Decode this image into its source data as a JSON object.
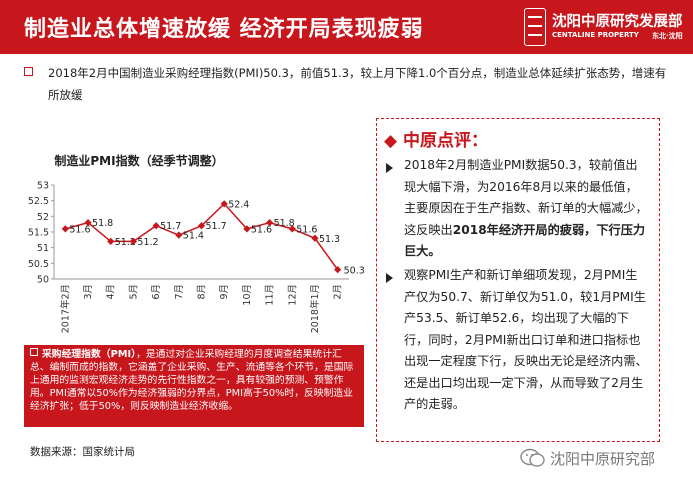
{
  "header": {
    "title": "制造业总体增速放缓 经济开局表现疲弱",
    "logo_cn": "沈阳中原研究发展部",
    "logo_en": "CENTALINE PROPERTY",
    "logo_city": "东北·沈阳"
  },
  "summary": "2018年2月中国制造业采购经理指数(PMI)50.3，前值51.3，较上月下降1.0个百分点，制造业总体延续扩张态势，增速有所放缓",
  "legend": {
    "term": "采购经理指数（PMI）",
    "body": "，是通过对企业采购经理的月度调查结果统计汇总、编制而成的指数，它涵盖了企业采购、生产、流通等各个环节，是国际上通用的监测宏观经济走势的先行性指数之一，具有较强的预测、预警作用。PMI通常以50%作为经济强弱的分界点，PMI高于50%时，反映制造业经济扩张；低于50%，则反映制造业经济收缩。"
  },
  "source": "数据来源：国家统计局",
  "comment": {
    "title": "中原点评：",
    "p1_a": "2018年2月制造业PMI数据50.3，较前值出现大幅下滑，为2016年8月以来的最低值，主要原因在于生产指数、新订单的大幅减少，这反映出",
    "p1_b": "2018年经济开局的疲弱，下行压力巨大。",
    "p2": "观察PMI生产和新订单细项发现，2月PMI生产仅为50.7、新订单仅为51.0，较1月PMI生产53.5、新订单52.6，均出现了大幅的下行，同时，2月PMI新出口订单和进口指标也出现一定程度下行，反映出无论是经济内需、还是出口均出现一定下滑，从而导致了2月生产的走弱。"
  },
  "watermark": "沈阳中原研究部",
  "chart_data": {
    "type": "line",
    "title": "制造业PMI指数（经季节调整）",
    "categories": [
      "2017年2月",
      "3月",
      "4月",
      "5月",
      "6月",
      "7月",
      "8月",
      "9月",
      "10月",
      "11月",
      "12月",
      "2018年1月",
      "2月"
    ],
    "values": [
      51.6,
      51.8,
      51.2,
      51.2,
      51.7,
      51.4,
      51.7,
      52.4,
      51.6,
      51.8,
      51.6,
      51.3,
      50.3
    ],
    "value_labels": [
      "51.6",
      "51.8",
      "51.2",
      "51.2",
      "51.7",
      "51.4",
      "51.7",
      "52.4",
      "51.6",
      "51.8",
      "51.6",
      "51.3",
      "50.3"
    ],
    "ylim": [
      50,
      53
    ],
    "yticks": [
      "53",
      "52.5",
      "52",
      "51.5",
      "51",
      "50.5",
      "50"
    ],
    "line_color": "#c8161d",
    "grid": false
  }
}
